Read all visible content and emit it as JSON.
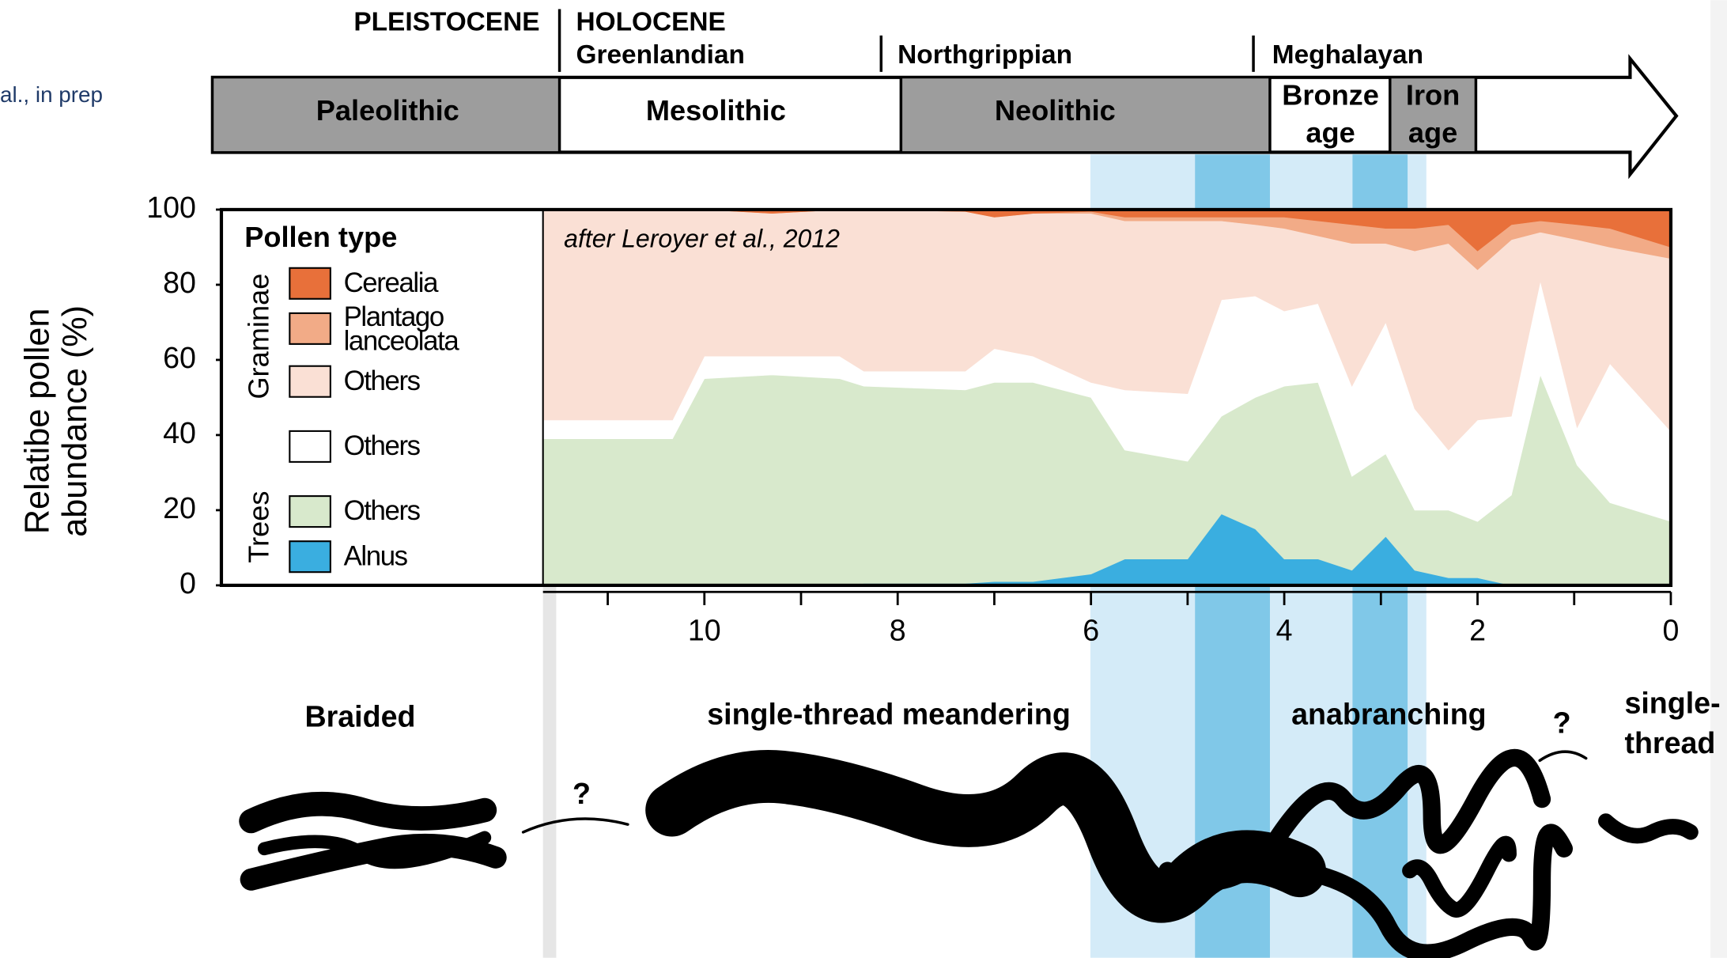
{
  "page": {
    "source_note": "al., in prep",
    "timeline": {
      "epochs": [
        "PLEISTOCENE",
        "HOLOCENE"
      ],
      "ages": [
        "Greenlandian",
        "Northgrippian",
        "Meghalayan"
      ],
      "periods": [
        [
          "Paleolithic"
        ],
        [
          "Mesolithic"
        ],
        [
          "Neolithic"
        ],
        [
          "Bronze",
          "age"
        ],
        [
          "Iron",
          "age"
        ]
      ]
    },
    "river_styles": [
      [
        "Braided"
      ],
      [
        "single-thread meandering"
      ],
      [
        "anabranching"
      ],
      [
        "single-",
        "thread"
      ]
    ],
    "question_marks": [
      "?",
      "?"
    ]
  },
  "chart_data": {
    "type": "area",
    "stacked": true,
    "annotation": "after Leroyer et al., 2012",
    "y_label": [
      "Relatibe pollen",
      "abundance (%)"
    ],
    "legend_title": "Pollen type",
    "legend_groups": [
      "Graminae",
      "Trees"
    ],
    "x": [
      11.67,
      10.33,
      10.0,
      9.3,
      8.6,
      8.35,
      7.3,
      7.0,
      6.6,
      6.0,
      5.65,
      5.0,
      4.65,
      4.3,
      4.0,
      3.65,
      3.3,
      2.95,
      2.65,
      2.3,
      2.0,
      1.65,
      1.35,
      0.97,
      0.63,
      0
    ],
    "xlim": [
      11.67,
      0
    ],
    "xticks": [
      10,
      8,
      6,
      4,
      2,
      0
    ],
    "xminorticks": [
      11,
      9,
      7,
      5,
      3,
      1
    ],
    "ylim": [
      0,
      100
    ],
    "yticks": [
      0,
      20,
      40,
      60,
      80,
      100
    ],
    "series": [
      {
        "name": "Alnus",
        "color": "#3aaee0",
        "values": [
          0,
          0,
          0,
          0,
          0,
          0.5,
          0.5,
          1,
          1,
          3,
          7,
          7,
          19,
          15,
          7,
          7,
          4,
          13,
          4,
          2,
          2,
          0,
          0.5,
          0,
          0,
          0
        ]
      },
      {
        "name": "Others",
        "color": "#d8e9cc",
        "values": [
          39,
          39,
          55,
          56,
          55,
          52.5,
          51.5,
          53,
          53,
          47,
          29,
          26,
          26,
          35,
          46,
          47,
          25,
          22,
          16,
          18,
          15,
          24,
          55.5,
          32,
          22,
          17
        ]
      },
      {
        "name": "Others",
        "color": "#ffffff",
        "values": [
          5,
          5,
          6,
          5,
          6,
          4,
          5,
          9,
          7,
          4,
          16,
          18,
          31,
          27,
          20,
          21,
          24,
          35,
          27,
          16,
          27,
          21,
          25,
          10,
          37,
          24
        ]
      },
      {
        "name": "Others",
        "color": "#fae0d5",
        "values": [
          56,
          56,
          39,
          38,
          39,
          43,
          42.5,
          35,
          38,
          45,
          45,
          46,
          21,
          19,
          22,
          18,
          38,
          21,
          42,
          55,
          40,
          47,
          13,
          50,
          31,
          46
        ]
      },
      {
        "name": "Plantago lanceolata",
        "color": "#f2ab87",
        "values": [
          0,
          0,
          0,
          0,
          0,
          0,
          0,
          0,
          0,
          0.5,
          1,
          1,
          1,
          2,
          3,
          4,
          5,
          4,
          6,
          5,
          5,
          4,
          3,
          4,
          5,
          3
        ]
      },
      {
        "name": "Cerealia",
        "color": "#e8703a",
        "values": [
          0,
          0,
          0,
          1,
          0,
          0,
          0.5,
          2,
          1,
          0.5,
          2,
          2,
          2,
          2,
          2,
          3,
          4,
          5,
          5,
          4,
          11,
          4,
          3,
          4,
          5,
          10
        ]
      }
    ]
  }
}
